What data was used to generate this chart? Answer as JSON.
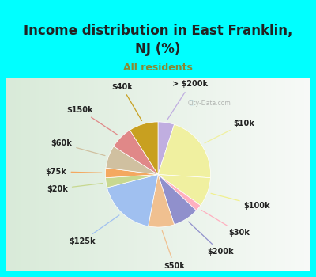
{
  "title": "Income distribution in East Franklin,\nNJ (%)",
  "subtitle": "All residents",
  "subtitle_color": "#888833",
  "title_color": "#222222",
  "background_color": "#00FFFF",
  "chart_bg_color": "#e8f5e8",
  "labels": [
    "> $200k",
    "$10k",
    "$100k",
    "$30k",
    "$200k",
    "$50k",
    "$125k",
    "$20k",
    "$75k",
    "$60k",
    "$150k",
    "$40k"
  ],
  "values": [
    5,
    21,
    9,
    2,
    8,
    8,
    18,
    3,
    3,
    7,
    7,
    9
  ],
  "colors": [
    "#c0aee0",
    "#f0f0a0",
    "#f0f0a0",
    "#ffb0c0",
    "#9090cc",
    "#f0c090",
    "#a0c0f0",
    "#c8d890",
    "#f4a860",
    "#d0c0a0",
    "#e08888",
    "#c8a020"
  ],
  "line_colors": [
    "#c0aee0",
    "#f0f0a0",
    "#f0f090",
    "#ffb0c0",
    "#9090cc",
    "#f0c090",
    "#a0c0f0",
    "#c8d890",
    "#f4a860",
    "#d0c0a0",
    "#e08888",
    "#c8a020"
  ],
  "title_fontsize": 12,
  "subtitle_fontsize": 9,
  "label_fontsize": 7
}
